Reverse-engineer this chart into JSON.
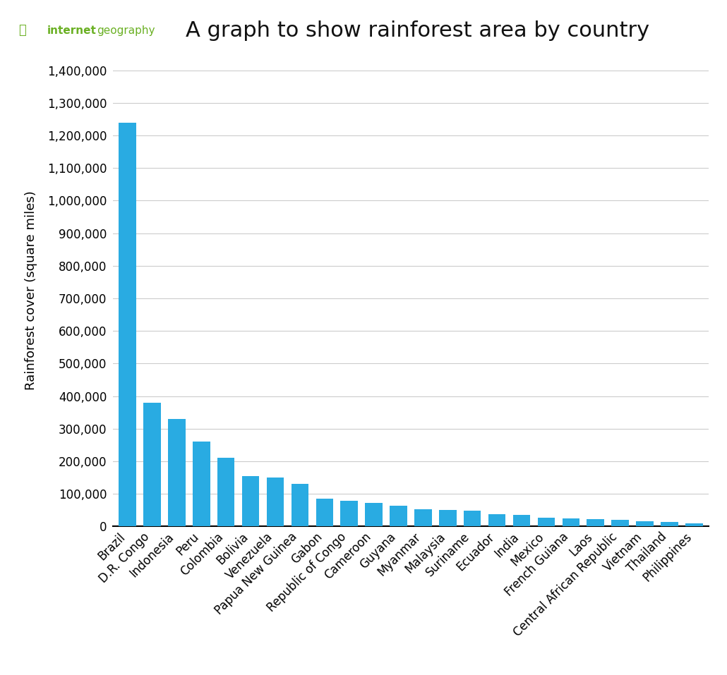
{
  "title": "A graph to show rainforest area by country",
  "ylabel": "Rainforest cover (square miles)",
  "bar_color": "#29ABE2",
  "background_color": "#ffffff",
  "categories": [
    "Brazil",
    "D.R. Congo",
    "Indonesia",
    "Peru",
    "Colombia",
    "Bolivia",
    "Venezuela",
    "Papua New Guinea",
    "Gabon",
    "Republic of Congo",
    "Cameroon",
    "Guyana",
    "Myanmar",
    "Malaysia",
    "Suriname",
    "Ecuador",
    "India",
    "Mexico",
    "French Guiana",
    "Laos",
    "Central African Republic",
    "Vietnam",
    "Thailand",
    "Philippines"
  ],
  "values": [
    1240000,
    380000,
    330000,
    260000,
    210000,
    154000,
    150000,
    130000,
    85000,
    80000,
    72000,
    63000,
    52000,
    50000,
    48000,
    38000,
    35000,
    28000,
    24000,
    22000,
    21000,
    17000,
    14000,
    10000
  ],
  "yticks": [
    0,
    100000,
    200000,
    300000,
    400000,
    500000,
    600000,
    700000,
    800000,
    900000,
    1000000,
    1100000,
    1200000,
    1300000,
    1400000
  ],
  "ylim": [
    0,
    1450000
  ],
  "grid_color": "#cccccc",
  "tick_fontsize": 12,
  "label_fontsize": 13,
  "title_fontsize": 22,
  "ig_green": "#6ab023",
  "ig_grey": "#555555"
}
